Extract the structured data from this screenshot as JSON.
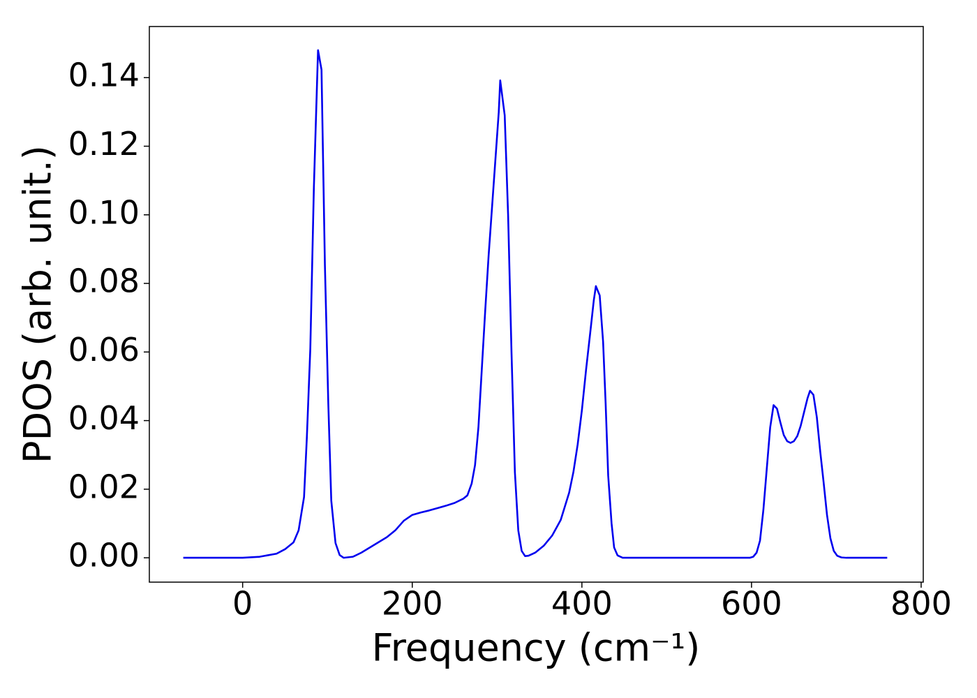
{
  "chart_data": {
    "type": "line",
    "xlabel": "Frequency (cm⁻¹)",
    "ylabel": "PDOS (arb. unit.)",
    "color": "#0000ee",
    "x": [
      -70,
      0,
      20,
      40,
      50,
      60,
      66,
      72.4,
      75.7,
      79.8,
      84,
      88.9,
      93,
      97,
      101,
      104.5,
      109.5,
      114.4,
      119,
      130,
      140,
      150,
      160,
      170,
      180,
      190,
      200,
      210,
      220,
      230,
      240,
      250,
      260,
      265,
      270,
      274,
      278,
      282,
      286,
      290,
      294,
      298,
      302,
      303.7,
      309,
      313,
      317,
      321,
      325,
      329,
      333,
      337,
      345,
      355,
      365,
      375,
      380,
      385,
      390,
      395,
      400,
      405,
      410,
      414,
      416.5,
      421,
      425,
      428,
      431,
      435,
      438,
      442,
      448,
      598,
      602,
      606,
      610,
      614,
      618,
      622,
      626,
      630,
      634,
      638,
      642,
      646,
      650,
      654,
      658,
      662,
      666,
      669,
      673,
      677,
      681,
      685,
      689,
      693,
      697,
      701,
      706,
      712,
      760
    ],
    "values": [
      0,
      0,
      0.0003,
      0.0012,
      0.0025,
      0.0045,
      0.008,
      0.0177,
      0.035,
      0.061,
      0.108,
      0.148,
      0.1423,
      0.0853,
      0.045,
      0.0167,
      0.0043,
      0.0008,
      0,
      0.0003,
      0.0015,
      0.003,
      0.0045,
      0.006,
      0.008,
      0.0108,
      0.0125,
      0.0132,
      0.0138,
      0.0145,
      0.0152,
      0.016,
      0.0172,
      0.0182,
      0.0216,
      0.027,
      0.038,
      0.055,
      0.072,
      0.088,
      0.102,
      0.116,
      0.13,
      0.1392,
      0.129,
      0.1,
      0.06,
      0.025,
      0.008,
      0.002,
      0.0005,
      0.0006,
      0.0015,
      0.0035,
      0.0065,
      0.011,
      0.015,
      0.019,
      0.025,
      0.033,
      0.043,
      0.055,
      0.066,
      0.075,
      0.0792,
      0.0765,
      0.063,
      0.045,
      0.024,
      0.01,
      0.003,
      0.0007,
      0,
      0,
      0.0003,
      0.0015,
      0.005,
      0.014,
      0.026,
      0.038,
      0.0445,
      0.0435,
      0.0395,
      0.0358,
      0.034,
      0.0335,
      0.034,
      0.0355,
      0.0385,
      0.0425,
      0.0465,
      0.0487,
      0.0475,
      0.041,
      0.031,
      0.022,
      0.0125,
      0.0057,
      0.002,
      0.0006,
      0.0001,
      0,
      0
    ],
    "xlim": [
      -110,
      802.5
    ],
    "ylim": [
      -0.0071,
      0.1549
    ],
    "xticks": [
      0,
      200,
      400,
      600,
      800
    ],
    "yticks": [
      {
        "value": 0,
        "label": "0.00"
      },
      {
        "value": 0.02,
        "label": "0.02"
      },
      {
        "value": 0.04,
        "label": "0.04"
      },
      {
        "value": 0.06,
        "label": "0.06"
      },
      {
        "value": 0.08,
        "label": "0.08"
      },
      {
        "value": 0.1,
        "label": "0.10"
      },
      {
        "value": 0.12,
        "label": "0.12"
      },
      {
        "value": 0.14,
        "label": "0.14"
      }
    ],
    "grid": false
  }
}
